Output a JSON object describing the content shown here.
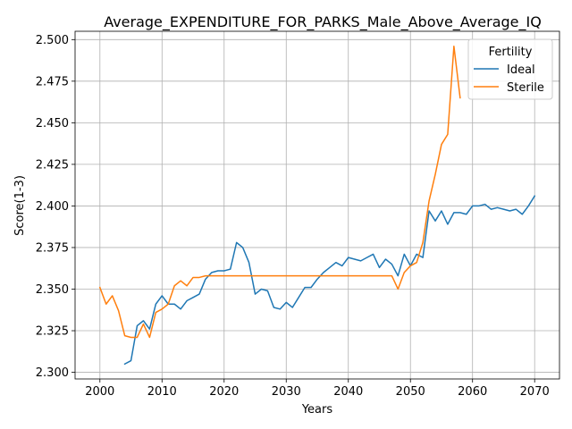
{
  "chart_data": {
    "type": "line",
    "title": "Average_EXPENDITURE_FOR_PARKS_Male_Above_Average_IQ",
    "xlabel": "Years",
    "ylabel": "Score(1-3)",
    "xlim": [
      1996,
      2074
    ],
    "ylim": [
      2.296,
      2.505
    ],
    "xticks": [
      2000,
      2010,
      2020,
      2030,
      2040,
      2050,
      2060,
      2070
    ],
    "xtick_labels": [
      "2000",
      "2010",
      "2020",
      "2030",
      "2040",
      "2050",
      "2060",
      "2070"
    ],
    "yticks": [
      2.3,
      2.325,
      2.35,
      2.375,
      2.4,
      2.425,
      2.45,
      2.475,
      2.5
    ],
    "ytick_labels": [
      "2.300",
      "2.325",
      "2.350",
      "2.375",
      "2.400",
      "2.425",
      "2.450",
      "2.475",
      "2.500"
    ],
    "grid": true,
    "legend": {
      "title": "Fertility",
      "placement": "top-right"
    },
    "series": [
      {
        "name": "Ideal",
        "color": "#1f77b4",
        "x": [
          2004,
          2005,
          2006,
          2007,
          2008,
          2009,
          2010,
          2011,
          2012,
          2013,
          2014,
          2015,
          2016,
          2017,
          2018,
          2019,
          2020,
          2021,
          2022,
          2023,
          2024,
          2025,
          2026,
          2027,
          2028,
          2029,
          2030,
          2031,
          2032,
          2033,
          2034,
          2035,
          2036,
          2037,
          2038,
          2039,
          2040,
          2041,
          2042,
          2043,
          2044,
          2045,
          2046,
          2047,
          2048,
          2049,
          2050,
          2051,
          2052,
          2053,
          2054,
          2055,
          2056,
          2057,
          2058,
          2059,
          2060,
          2061,
          2062,
          2063,
          2064,
          2065,
          2066,
          2067,
          2068,
          2069,
          2070
        ],
        "y": [
          2.305,
          2.307,
          2.328,
          2.331,
          2.326,
          2.341,
          2.346,
          2.341,
          2.341,
          2.338,
          2.343,
          2.345,
          2.347,
          2.356,
          2.36,
          2.361,
          2.361,
          2.362,
          2.378,
          2.375,
          2.366,
          2.347,
          2.35,
          2.349,
          2.339,
          2.338,
          2.342,
          2.339,
          2.345,
          2.351,
          2.351,
          2.356,
          2.36,
          2.363,
          2.366,
          2.364,
          2.369,
          2.368,
          2.367,
          2.369,
          2.371,
          2.363,
          2.368,
          2.365,
          2.358,
          2.371,
          2.364,
          2.371,
          2.369,
          2.397,
          2.391,
          2.397,
          2.389,
          2.396,
          2.396,
          2.395,
          2.4,
          2.4,
          2.401,
          2.398,
          2.399,
          2.398,
          2.397,
          2.398,
          2.395,
          2.4,
          2.406
        ]
      },
      {
        "name": "Sterile",
        "color": "#ff7f0e",
        "x": [
          2000,
          2001,
          2002,
          2003,
          2004,
          2005,
          2006,
          2007,
          2008,
          2009,
          2010,
          2011,
          2012,
          2013,
          2014,
          2015,
          2016,
          2017,
          2018,
          2019,
          2020,
          2021,
          2022,
          2023,
          2024,
          2025,
          2026,
          2027,
          2028,
          2029,
          2030,
          2031,
          2032,
          2033,
          2034,
          2035,
          2036,
          2037,
          2038,
          2039,
          2040,
          2041,
          2042,
          2043,
          2044,
          2045,
          2046,
          2047,
          2048,
          2049,
          2050,
          2051,
          2052,
          2053,
          2054,
          2055,
          2056,
          2057,
          2058
        ],
        "y": [
          2.351,
          2.341,
          2.346,
          2.337,
          2.322,
          2.321,
          2.321,
          2.329,
          2.321,
          2.336,
          2.338,
          2.341,
          2.352,
          2.355,
          2.352,
          2.357,
          2.357,
          2.358,
          2.358,
          2.358,
          2.358,
          2.358,
          2.358,
          2.358,
          2.358,
          2.358,
          2.358,
          2.358,
          2.358,
          2.358,
          2.358,
          2.358,
          2.358,
          2.358,
          2.358,
          2.358,
          2.358,
          2.358,
          2.358,
          2.358,
          2.358,
          2.358,
          2.358,
          2.358,
          2.358,
          2.358,
          2.358,
          2.358,
          2.35,
          2.36,
          2.364,
          2.366,
          2.378,
          2.403,
          2.419,
          2.437,
          2.443,
          2.496,
          2.465
        ]
      }
    ]
  }
}
